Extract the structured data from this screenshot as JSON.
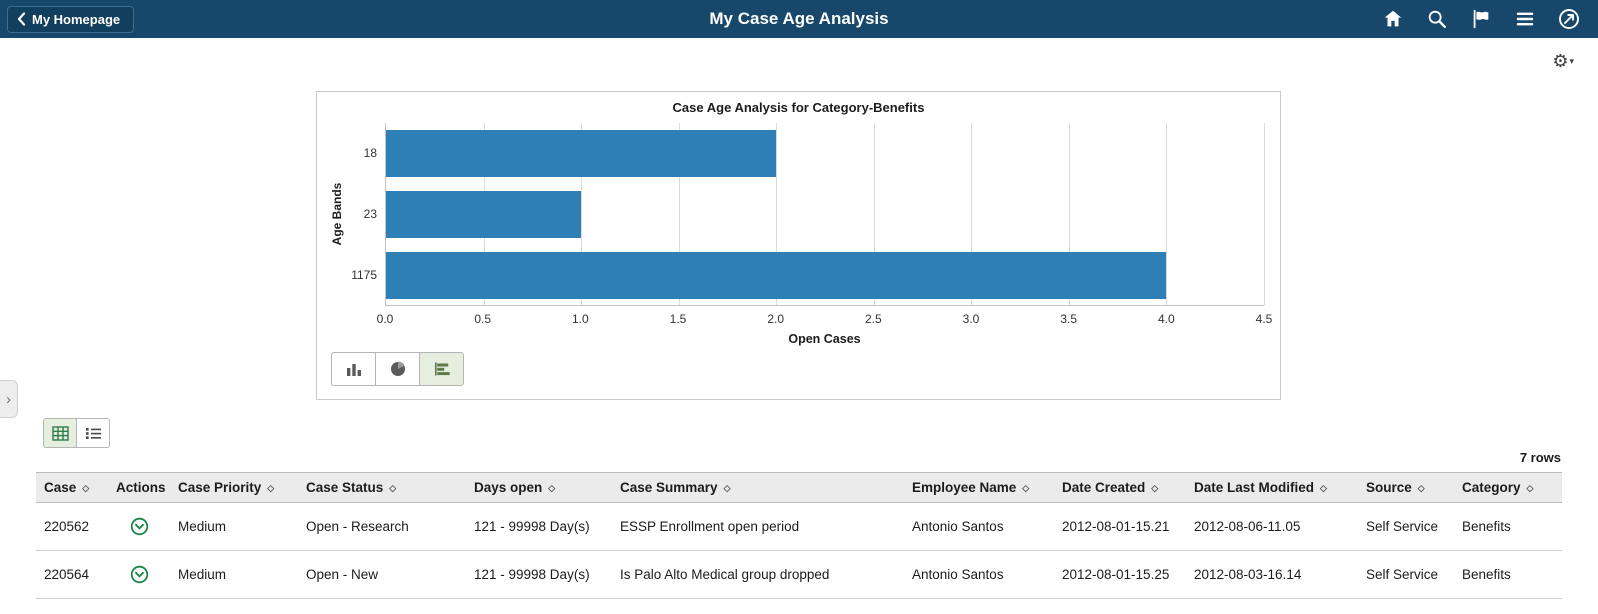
{
  "topbar": {
    "back_label": "My Homepage",
    "title": "My Case Age Analysis",
    "bg_color": "#17486b"
  },
  "icons": {
    "back_chevron": "‹",
    "home": "house-glyph",
    "search": "magnifier-glyph",
    "notifications": "flag-glyph",
    "actions_menu": "hamburger-glyph",
    "navbar": "compass-glyph",
    "settings_gear": "⚙",
    "settings_caret": "▾",
    "expand_panel": "›"
  },
  "chart_data": {
    "type": "bar",
    "orientation": "horizontal",
    "title": "Case Age Analysis for Category-Benefits",
    "categories": [
      "18",
      "23",
      "1175"
    ],
    "values": [
      2,
      1,
      4
    ],
    "xlabel": "Open Cases",
    "ylabel": "Age Bands",
    "xlim": [
      0,
      4.5
    ],
    "xticks": [
      0,
      0.5,
      1,
      1.5,
      2,
      2.5,
      3,
      3.5,
      4,
      4.5
    ],
    "bar_color": "#2d7fb5",
    "grid": true,
    "legend": false
  },
  "chart_controls": {
    "types": [
      "vertical-bar-chart",
      "pie-chart",
      "horizontal-bar-chart"
    ],
    "selected": "horizontal-bar-chart"
  },
  "grid_controls": {
    "views": [
      "grid-view",
      "list-view"
    ],
    "selected": "grid-view"
  },
  "table": {
    "row_count_label": "7 rows",
    "columns": [
      "Case",
      "Actions",
      "Case Priority",
      "Case Status",
      "Days open",
      "Case Summary",
      "Employee Name",
      "Date Created",
      "Date Last Modified",
      "Source",
      "Category"
    ],
    "rows": [
      {
        "case": "220562",
        "priority": "Medium",
        "status": "Open - Research",
        "days_open": "121 - 99998 Day(s)",
        "summary": "ESSP Enrollment open period",
        "employee": "Antonio Santos",
        "date_created": "2012-08-01-15.21",
        "date_modified": "2012-08-06-11.05",
        "source": "Self Service",
        "category": "Benefits"
      },
      {
        "case": "220564",
        "priority": "Medium",
        "status": "Open - New",
        "days_open": "121 - 99998 Day(s)",
        "summary": "Is Palo Alto Medical group dropped",
        "employee": "Antonio Santos",
        "date_created": "2012-08-01-15.25",
        "date_modified": "2012-08-03-16.14",
        "source": "Self Service",
        "category": "Benefits"
      }
    ]
  }
}
